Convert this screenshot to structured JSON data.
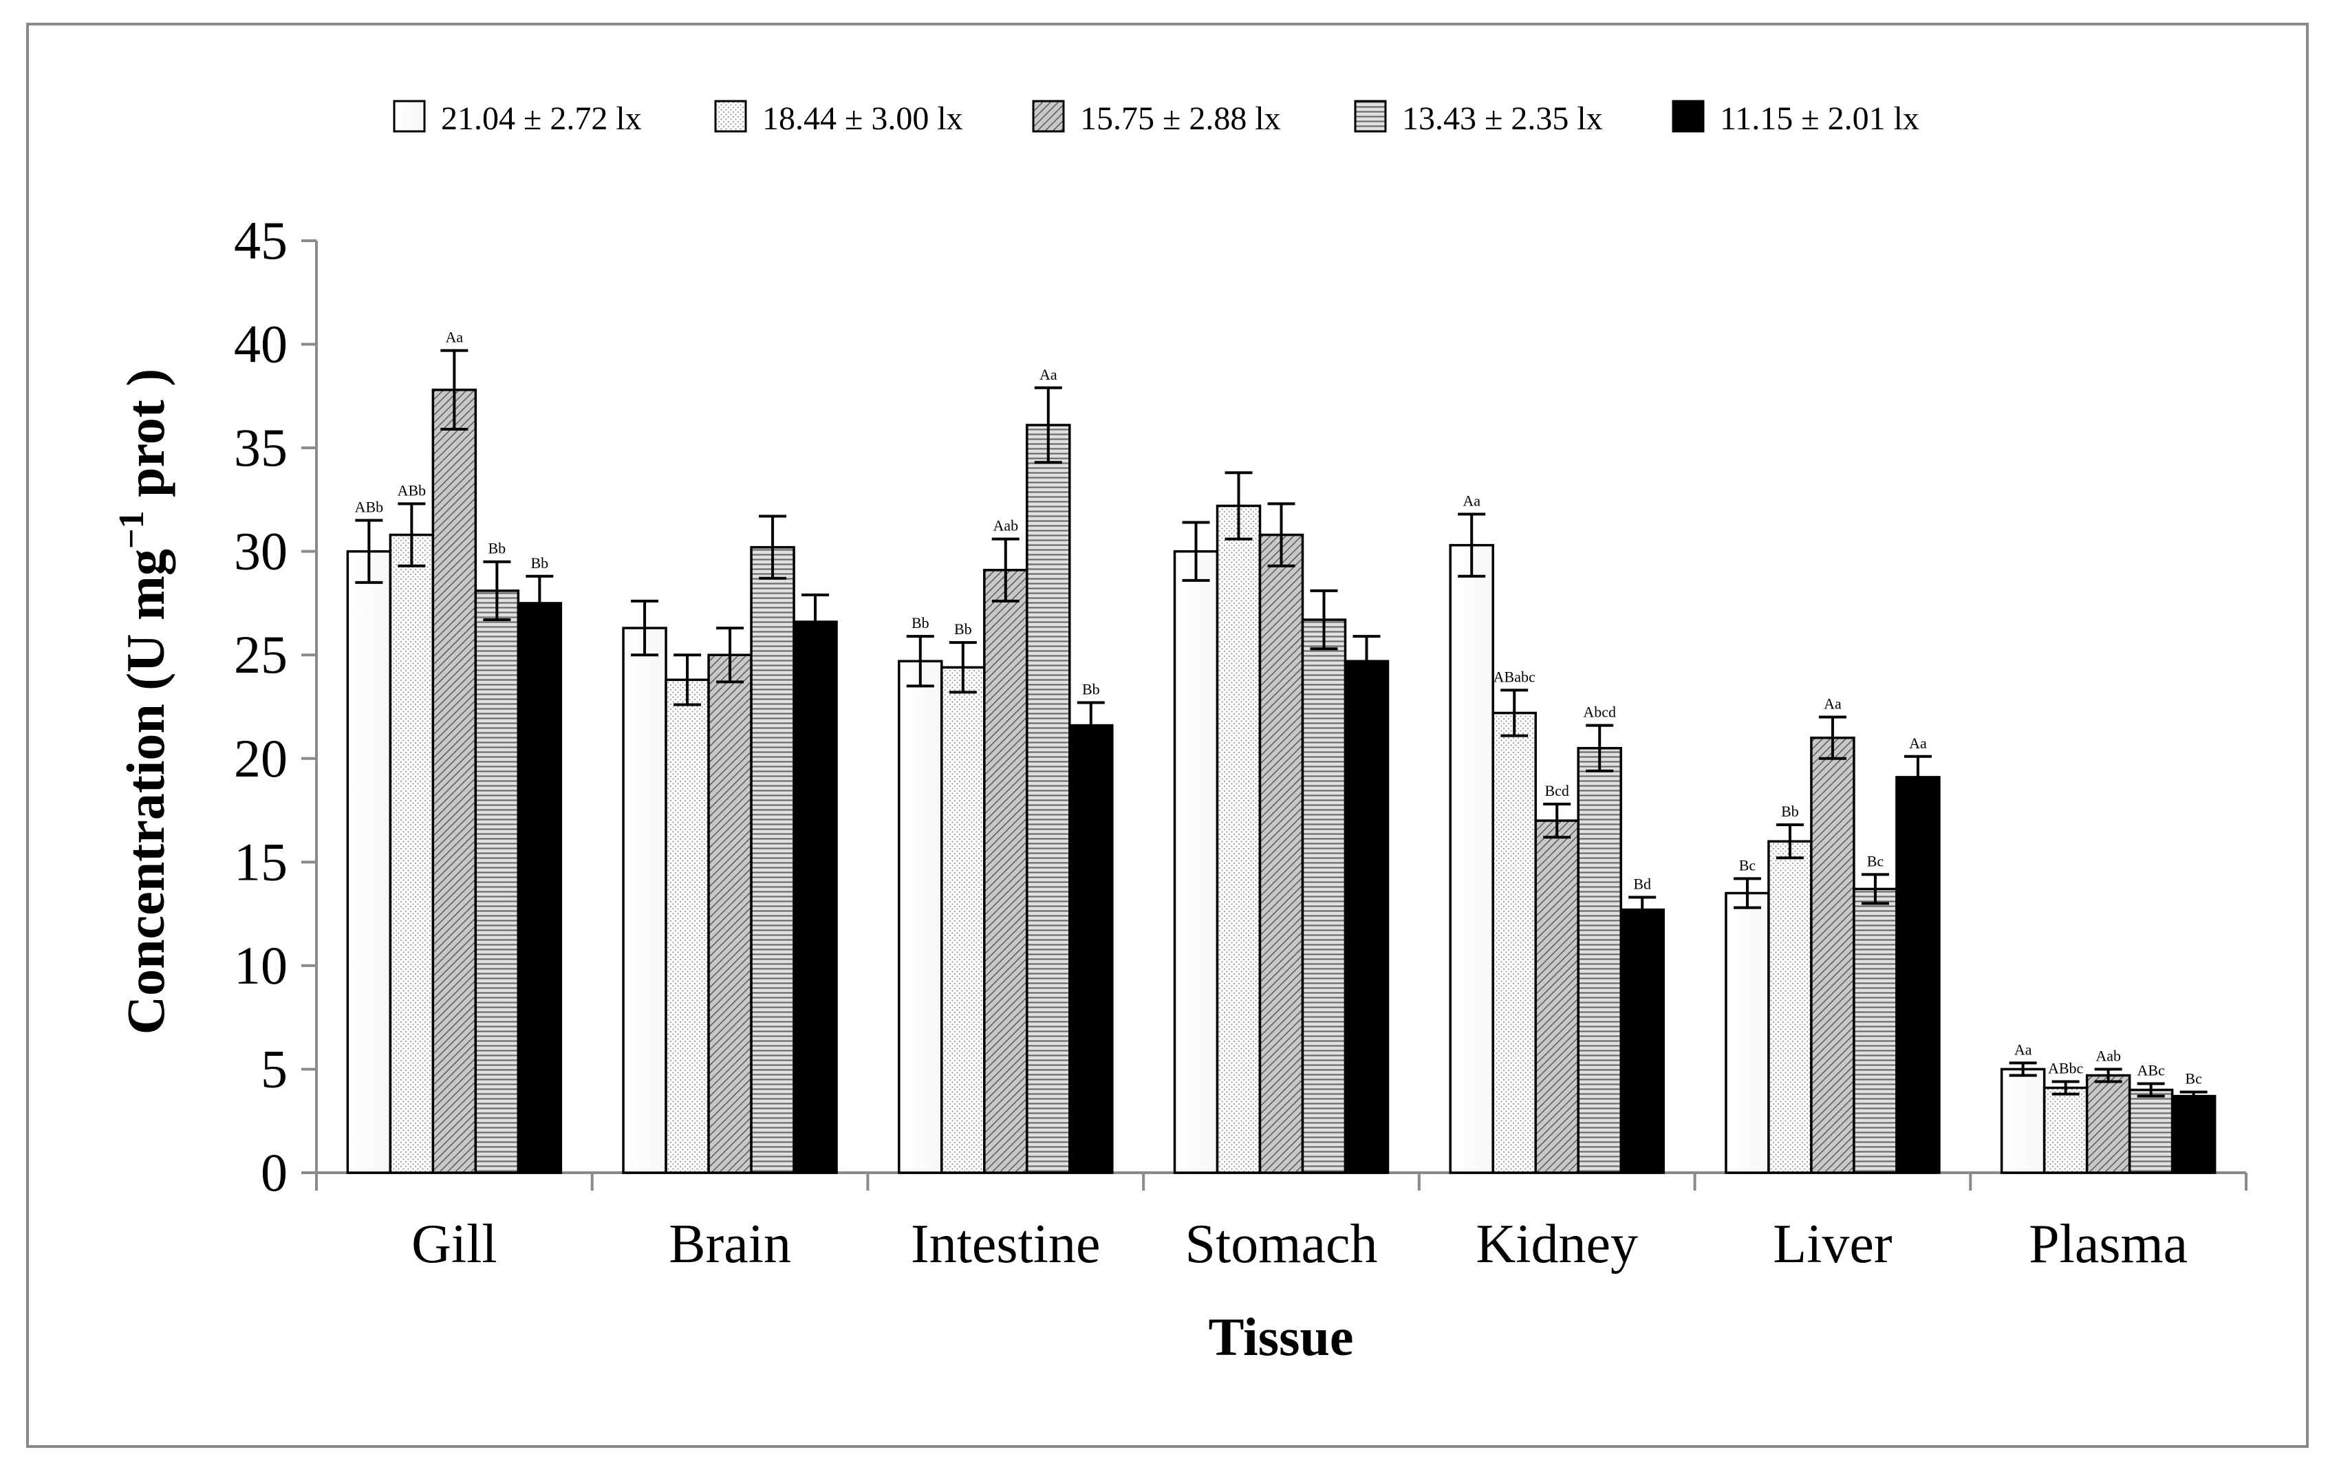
{
  "chart_data": {
    "type": "bar",
    "title": "",
    "xlabel": "Tissue",
    "ylabel_prefix": "Concentration (U mg",
    "ylabel_sup": "−1",
    "ylabel_suffix": " prot )",
    "ylim": [
      0,
      45
    ],
    "yticks": [
      "0",
      "5",
      "10",
      "15",
      "20",
      "25",
      "30",
      "35",
      "40",
      "45"
    ],
    "grid": false,
    "legend_position": "top",
    "categories": [
      "Gill",
      "Brain",
      "Intestine",
      "Stomach",
      "Kidney",
      "Liver",
      "Plasma"
    ],
    "series": [
      {
        "name": "21.04 ± 2.72 lx",
        "pattern": "white",
        "values": [
          30.0,
          26.3,
          24.7,
          30.0,
          30.3,
          13.5,
          5.0
        ],
        "errors": [
          1.5,
          1.3,
          1.2,
          1.4,
          1.5,
          0.7,
          0.3
        ],
        "labels": [
          "ABb",
          "",
          "Bb",
          "",
          "Aa",
          "Bc",
          "Aa"
        ]
      },
      {
        "name": "18.44 ± 3.00 lx",
        "pattern": "dots",
        "values": [
          30.8,
          23.8,
          24.4,
          32.2,
          22.2,
          16.0,
          4.1
        ],
        "errors": [
          1.5,
          1.2,
          1.2,
          1.6,
          1.1,
          0.8,
          0.3
        ],
        "labels": [
          "ABb",
          "",
          "Bb",
          "",
          "ABabc",
          "Bb",
          "ABbc"
        ]
      },
      {
        "name": "15.75 ± 2.88 lx",
        "pattern": "diagonal",
        "values": [
          37.8,
          25.0,
          29.1,
          30.8,
          17.0,
          21.0,
          4.7
        ],
        "errors": [
          1.9,
          1.3,
          1.5,
          1.5,
          0.8,
          1.0,
          0.3
        ],
        "labels": [
          "Aa",
          "",
          "Aab",
          "",
          "Bcd",
          "Aa",
          "Aab"
        ]
      },
      {
        "name": "13.43 ± 2.35 lx",
        "pattern": "horizontal",
        "values": [
          28.1,
          30.2,
          36.1,
          26.7,
          20.5,
          13.7,
          4.0
        ],
        "errors": [
          1.4,
          1.5,
          1.8,
          1.4,
          1.1,
          0.7,
          0.3
        ],
        "labels": [
          "Bb",
          "",
          "Aa",
          "",
          "Abcd",
          "Bc",
          "ABc"
        ]
      },
      {
        "name": "11.15 ± 2.01 lx",
        "pattern": "black",
        "values": [
          27.5,
          26.6,
          21.6,
          24.7,
          12.7,
          19.1,
          3.7
        ],
        "errors": [
          1.3,
          1.3,
          1.1,
          1.2,
          0.6,
          1.0,
          0.2
        ],
        "labels": [
          "Bb",
          "",
          "Bb",
          "",
          "Bd",
          "Aa",
          "Bc"
        ]
      }
    ]
  }
}
